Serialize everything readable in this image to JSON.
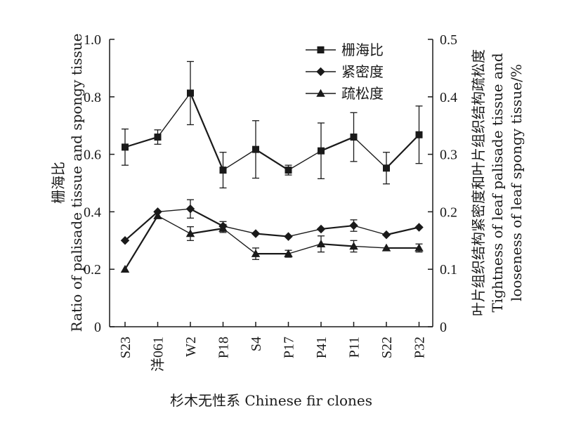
{
  "chart_data": {
    "type": "line",
    "categories": [
      "S23",
      "洋061",
      "W2",
      "P18",
      "S4",
      "P17",
      "P41",
      "P11",
      "S22",
      "P32"
    ],
    "xlabel": "杉木无性系 Chinese fir clones",
    "ylabel_left": [
      "栅海比",
      "Ratio of palisade tissue and spongy tissue"
    ],
    "ylabel_right": [
      "叶片组织结构紧密度和叶片组织结构疏松度",
      "Tightness of leaf palisade tissue and",
      "looseness of leaf spongy tissue/%"
    ],
    "ylim_left": [
      0,
      1.0
    ],
    "yticks_left": [
      "0",
      "0.2",
      "0.4",
      "0.6",
      "0.8",
      "1.0"
    ],
    "ylim_right": [
      0,
      0.5
    ],
    "yticks_right": [
      "0",
      "0.1",
      "0.2",
      "0.3",
      "0.4",
      "0.5"
    ],
    "grid": false,
    "legend_position": "top-right",
    "series": [
      {
        "name": "栅海比",
        "axis": "left",
        "marker": "square",
        "values": [
          0.625,
          0.66,
          0.813,
          0.545,
          0.617,
          0.545,
          0.612,
          0.66,
          0.552,
          0.668
        ],
        "errors": [
          0.063,
          0.025,
          0.11,
          0.062,
          0.1,
          0.017,
          0.097,
          0.085,
          0.055,
          0.1
        ]
      },
      {
        "name": "紧密度",
        "axis": "right",
        "marker": "diamond",
        "values": [
          0.15,
          0.2,
          0.205,
          0.175,
          0.162,
          0.157,
          0.17,
          0.176,
          0.16,
          0.173
        ],
        "errors": [
          0,
          0,
          0.016,
          0.008,
          0,
          0,
          0,
          0.01,
          0,
          0
        ]
      },
      {
        "name": "疏松度",
        "axis": "right",
        "marker": "triangle",
        "values": [
          0.1,
          0.193,
          0.162,
          0.171,
          0.127,
          0.127,
          0.144,
          0.14,
          0.137,
          0.137
        ],
        "errors": [
          0,
          0,
          0.012,
          0.007,
          0.01,
          0.006,
          0.014,
          0.01,
          0,
          0.007
        ]
      }
    ]
  }
}
